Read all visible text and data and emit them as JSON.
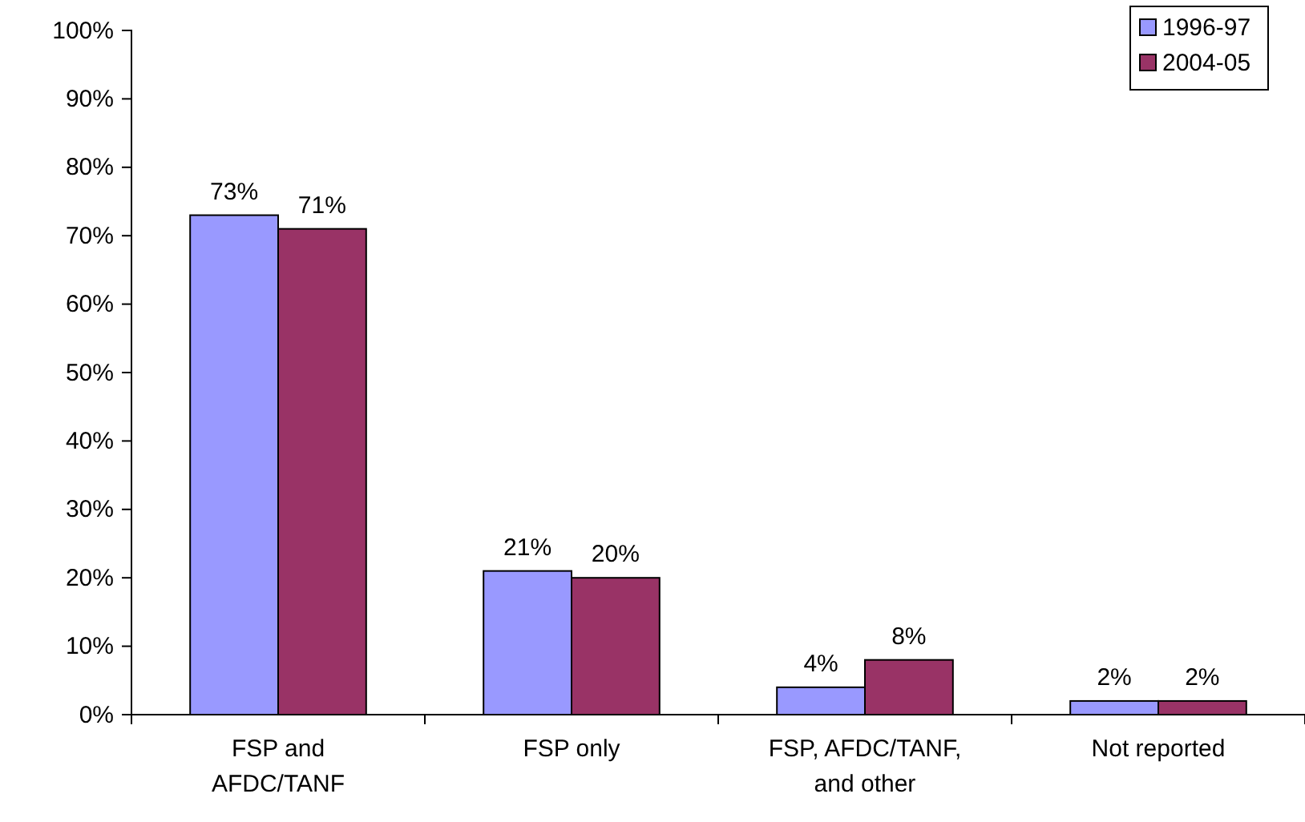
{
  "chart_data": {
    "type": "bar",
    "categories": [
      "FSP and AFDC/TANF",
      "FSP only",
      "FSP, AFDC/TANF, and other",
      "Not reported"
    ],
    "series": [
      {
        "name": "1996-97",
        "color": "#9999ff",
        "values": [
          73,
          21,
          4,
          2
        ],
        "value_labels": [
          "73%",
          "21%",
          "4%",
          "2%"
        ]
      },
      {
        "name": "2004-05",
        "color": "#993366",
        "values": [
          71,
          20,
          8,
          2
        ],
        "value_labels": [
          "71%",
          "20%",
          "8%",
          "2%"
        ]
      }
    ],
    "ylim": [
      0,
      100
    ],
    "yticks": [
      {
        "value": 0,
        "label": "0%"
      },
      {
        "value": 10,
        "label": "10%"
      },
      {
        "value": 20,
        "label": "20%"
      },
      {
        "value": 30,
        "label": "30%"
      },
      {
        "value": 40,
        "label": "40%"
      },
      {
        "value": 50,
        "label": "50%"
      },
      {
        "value": 60,
        "label": "60%"
      },
      {
        "value": 70,
        "label": "70%"
      },
      {
        "value": 80,
        "label": "80%"
      },
      {
        "value": 90,
        "label": "90%"
      },
      {
        "value": 100,
        "label": "100%"
      }
    ],
    "legend": "top right"
  }
}
